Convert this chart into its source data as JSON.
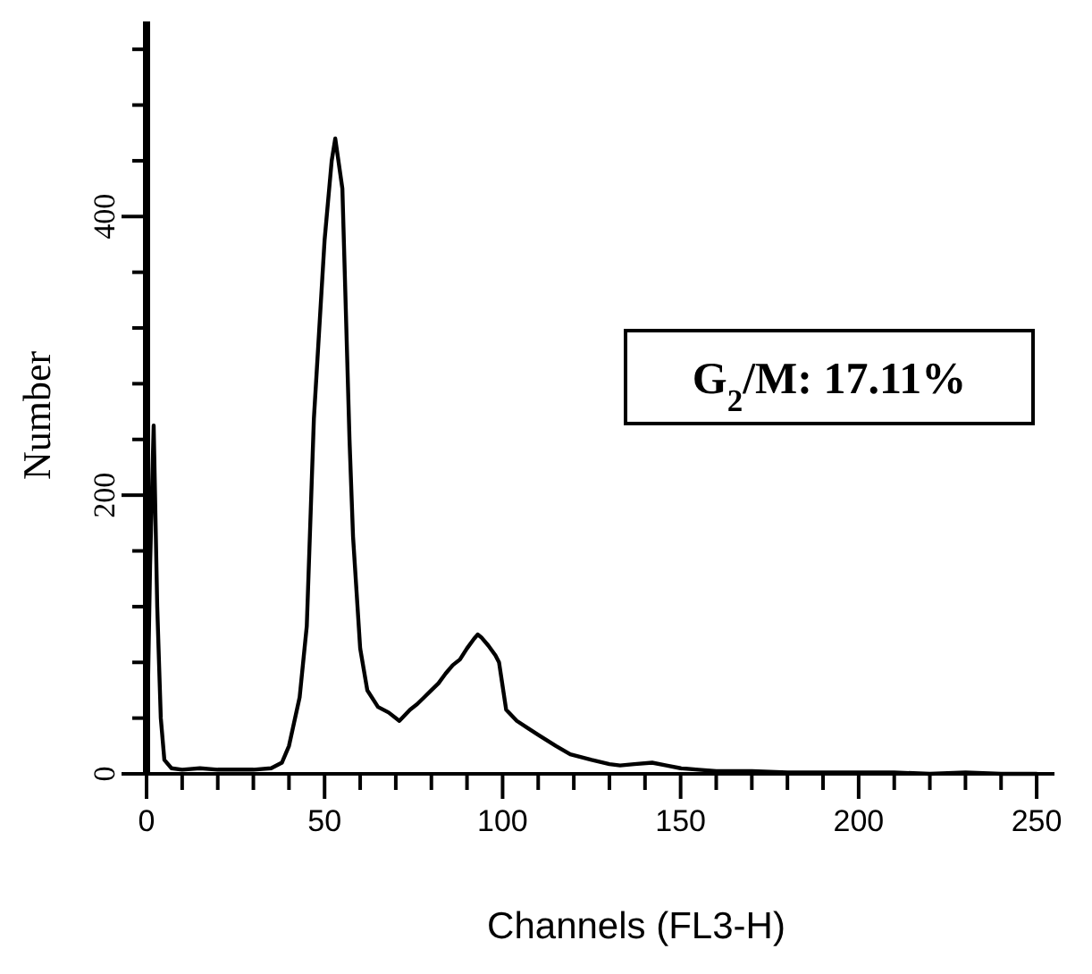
{
  "chart_data": {
    "type": "line",
    "xlabel": "Channels (FL3-H)",
    "ylabel": "Number",
    "annotations": [
      "G$_{2}$/M: 17.11%"
    ],
    "xlim": [
      0,
      255
    ],
    "ylim": [
      0,
      540
    ],
    "xticks": [
      0,
      {
        "value": 10,
        "label": null
      },
      {
        "value": 20,
        "label": null
      },
      {
        "value": 30,
        "label": null
      },
      {
        "value": 40,
        "label": null
      },
      50,
      {
        "value": 60,
        "label": null
      },
      {
        "value": 70,
        "label": null
      },
      {
        "value": 80,
        "label": null
      },
      {
        "value": 90,
        "label": null
      },
      100,
      {
        "value": 110,
        "label": null
      },
      {
        "value": 120,
        "label": null
      },
      {
        "value": 130,
        "label": null
      },
      {
        "value": 140,
        "label": null
      },
      150,
      {
        "value": 160,
        "label": null
      },
      {
        "value": 170,
        "label": null
      },
      {
        "value": 180,
        "label": null
      },
      {
        "value": 190,
        "label": null
      },
      200,
      {
        "value": 210,
        "label": null
      },
      {
        "value": 220,
        "label": null
      },
      {
        "value": 230,
        "label": null
      },
      {
        "value": 240,
        "label": null
      },
      250
    ],
    "yticks": [
      0,
      {
        "value": 40,
        "label": null
      },
      {
        "value": 80,
        "label": null
      },
      {
        "value": 120,
        "label": null
      },
      {
        "value": 160,
        "label": null
      },
      200,
      {
        "value": 240,
        "label": null
      },
      {
        "value": 280,
        "label": null
      },
      {
        "value": 320,
        "label": null
      },
      {
        "value": 360,
        "label": null
      },
      400,
      {
        "value": 440,
        "label": null
      },
      {
        "value": 480,
        "label": null
      },
      {
        "value": 520,
        "label": null
      }
    ],
    "grid": false,
    "marker": "none",
    "line_style": "solid",
    "series": [
      {
        "color": "#000000",
        "x": [
          0,
          1,
          2,
          3,
          4,
          5,
          7,
          10,
          15,
          20,
          25,
          30,
          35,
          38,
          40,
          43,
          45,
          47,
          50,
          52,
          53,
          55,
          57,
          58,
          60,
          62,
          65,
          68,
          71,
          74,
          76,
          78,
          80,
          82,
          84,
          86,
          88,
          90,
          92,
          93,
          94,
          96,
          98,
          99,
          101,
          104,
          107,
          110,
          115,
          119,
          125,
          130,
          133,
          137,
          142,
          146,
          150,
          155,
          160,
          170,
          180,
          190,
          200,
          210,
          220,
          230,
          240,
          250
        ],
        "values": [
          5,
          150,
          250,
          120,
          40,
          10,
          4,
          3,
          4,
          3,
          3,
          3,
          4,
          8,
          20,
          55,
          106,
          255,
          383,
          440,
          456,
          420,
          240,
          170,
          90,
          60,
          48,
          44,
          38,
          46,
          50,
          55,
          60,
          65,
          72,
          78,
          82,
          90,
          97,
          100,
          98,
          92,
          85,
          80,
          46,
          38,
          33,
          28,
          20,
          14,
          10,
          7,
          6,
          7,
          8,
          6,
          4,
          3,
          2,
          2,
          1,
          1,
          1,
          1,
          0,
          1,
          0,
          0
        ]
      }
    ]
  }
}
